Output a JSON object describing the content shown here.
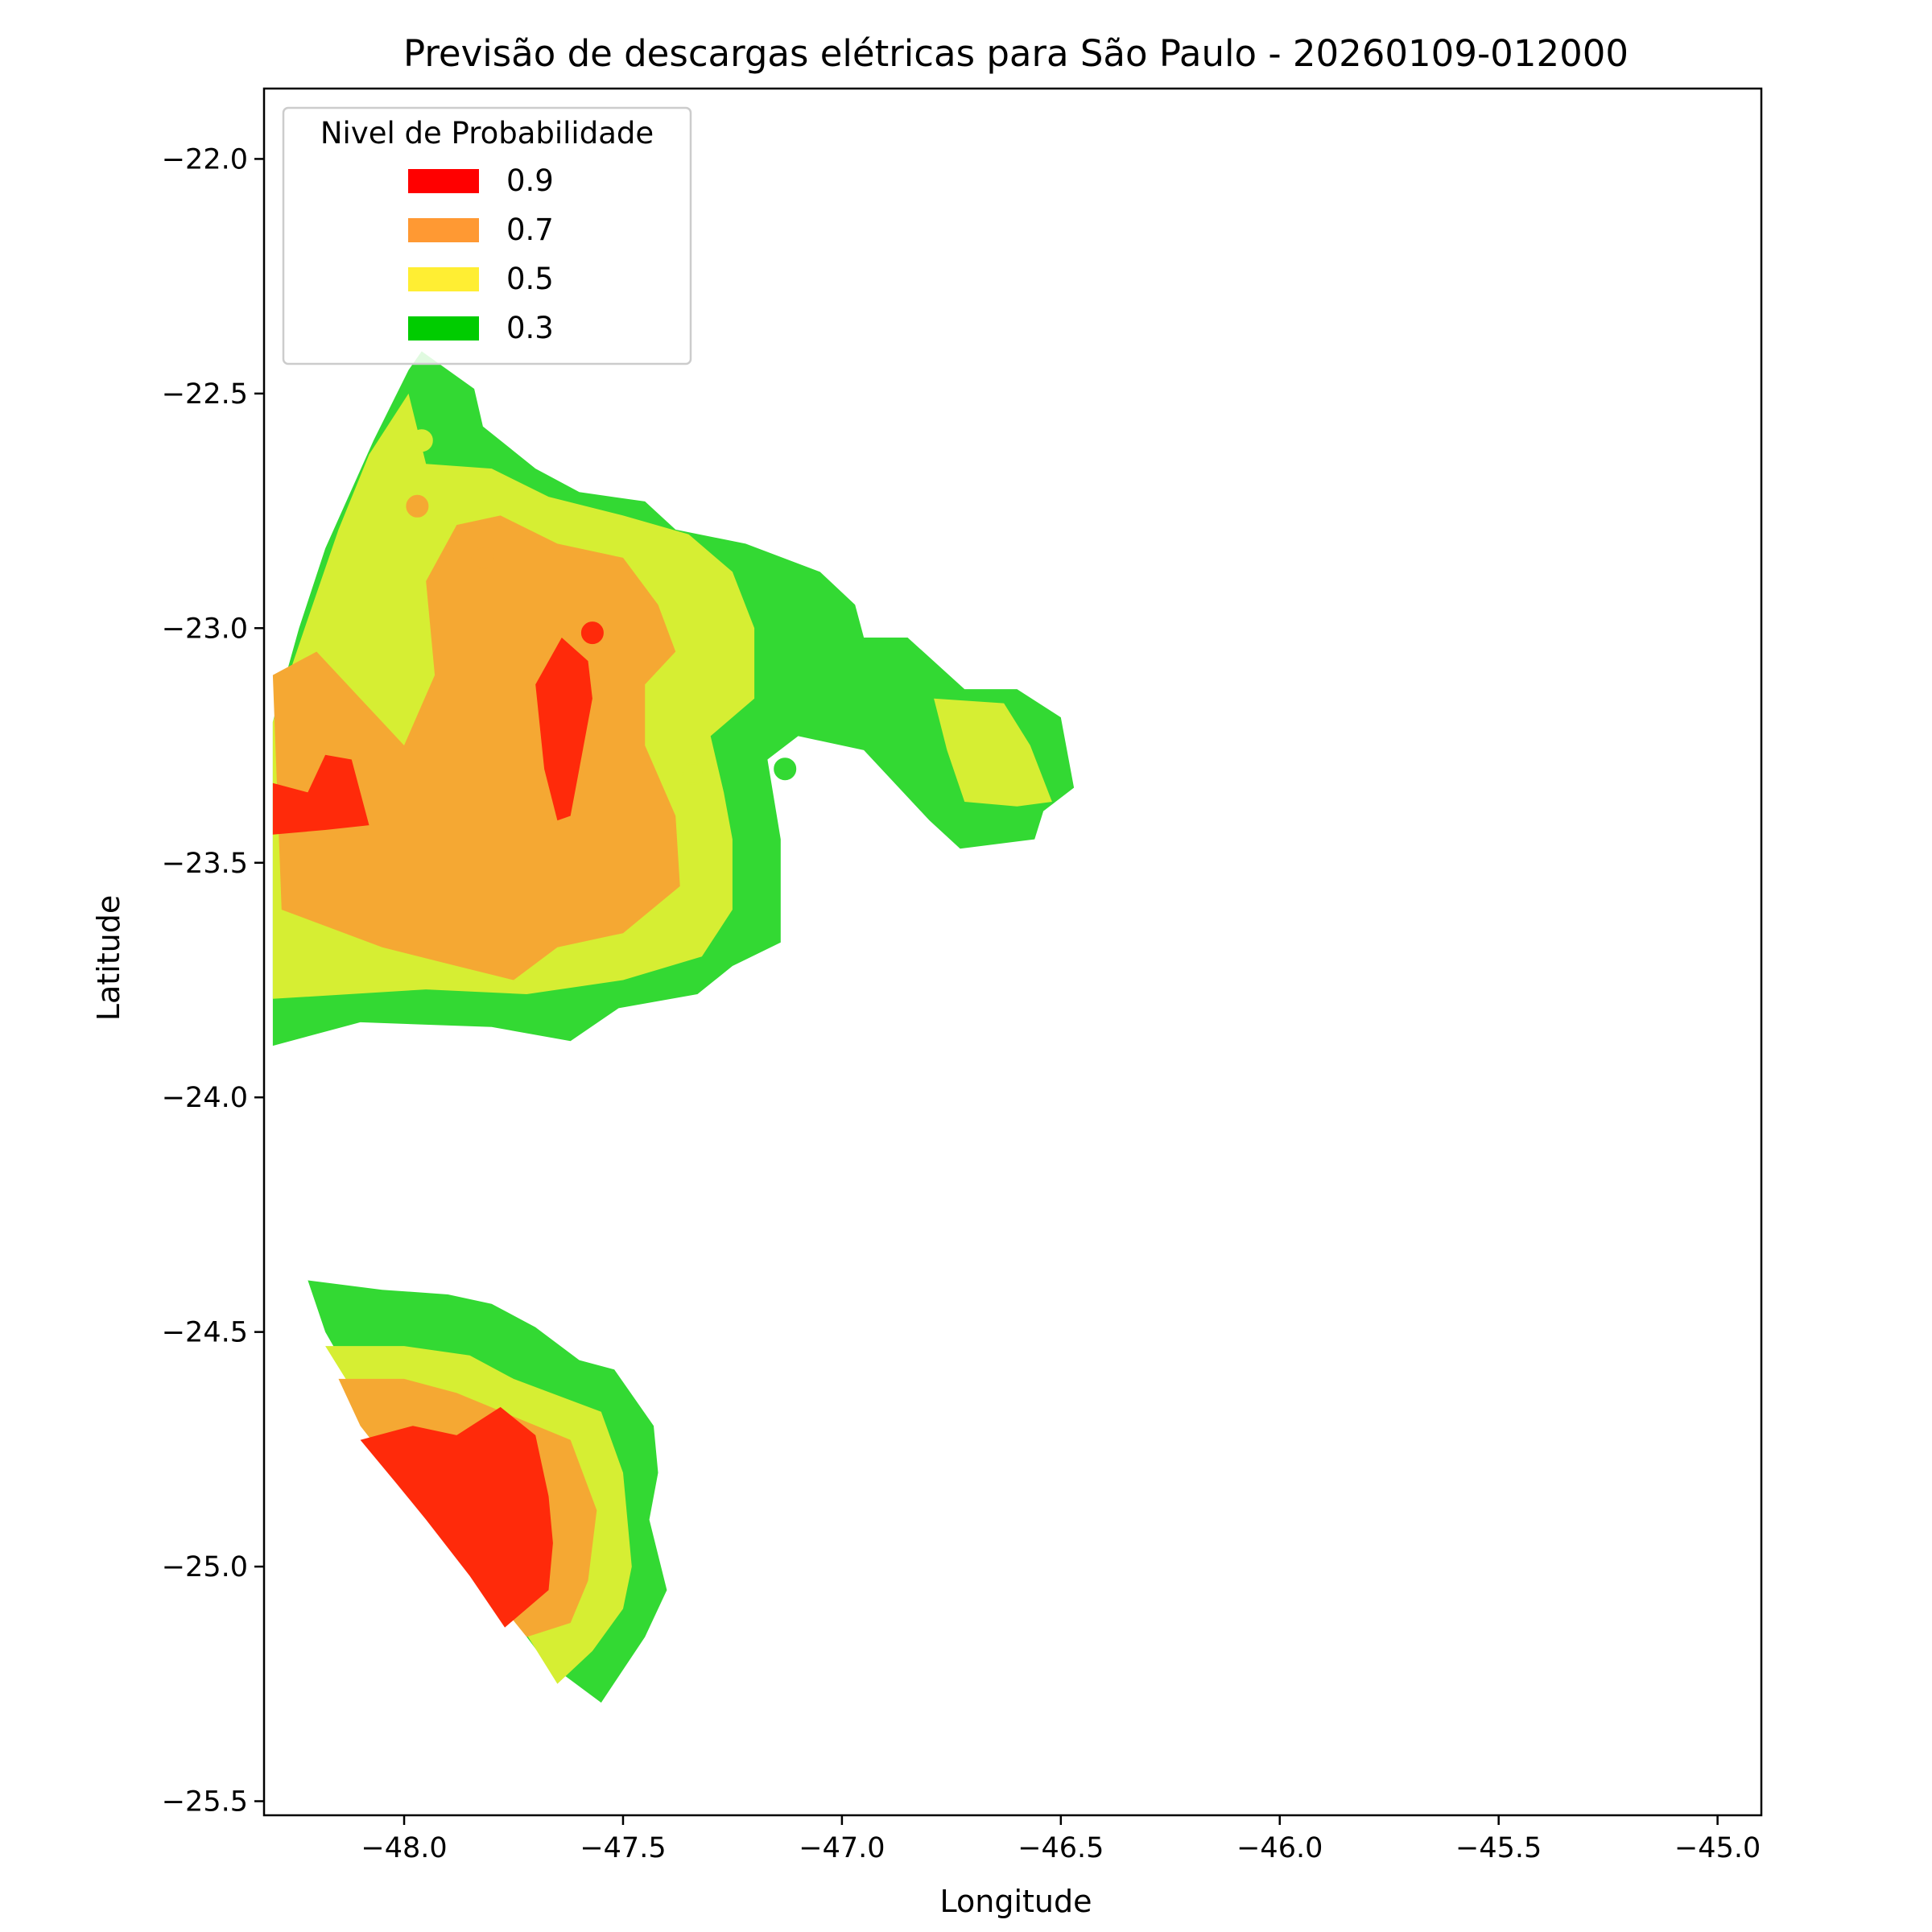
{
  "chart_data": {
    "type": "contour-map",
    "title": "Previsão de descargas elétricas para São Paulo - 20260109-012000",
    "xlabel": "Longitude",
    "ylabel": "Latitude",
    "xlim": [
      -48.32,
      -44.9
    ],
    "ylim": [
      -25.53,
      -21.85
    ],
    "x_ticks": [
      -48.0,
      -47.5,
      -47.0,
      -46.5,
      -46.0,
      -45.5,
      -45.0
    ],
    "x_tick_labels": [
      "−48.0",
      "−47.5",
      "−47.0",
      "−46.5",
      "−46.0",
      "−45.5",
      "−45.0"
    ],
    "y_ticks": [
      -22.0,
      -22.5,
      -23.0,
      -23.5,
      -24.0,
      -24.5,
      -25.0,
      -25.5
    ],
    "y_tick_labels": [
      "−22.0",
      "−22.5",
      "−23.0",
      "−23.5",
      "−24.0",
      "−24.5",
      "−25.0",
      "−25.5"
    ],
    "legend": {
      "title": "Nivel de Probabilidade",
      "placement": "upper-left",
      "entries": [
        {
          "label": "0.9",
          "color": "#ff0000"
        },
        {
          "label": "0.7",
          "color": "#ff9933"
        },
        {
          "label": "0.5",
          "color": "#ffee33"
        },
        {
          "label": "0.3",
          "color": "#00cc00"
        }
      ]
    },
    "fill_colors": {
      "0.3": "#33d933",
      "0.5": "#d6ee33",
      "0.7": "#f5a833",
      "0.9": "#ff2a0a"
    },
    "regions": [
      {
        "level": "0.3",
        "coords": [
          [
            -47.96,
            -22.41
          ],
          [
            -47.84,
            -22.49
          ],
          [
            -47.82,
            -22.57
          ],
          [
            -47.7,
            -22.66
          ],
          [
            -47.6,
            -22.71
          ],
          [
            -47.45,
            -22.73
          ],
          [
            -47.38,
            -22.79
          ],
          [
            -47.22,
            -22.82
          ],
          [
            -47.05,
            -22.88
          ],
          [
            -46.97,
            -22.95
          ],
          [
            -46.95,
            -23.02
          ],
          [
            -46.85,
            -23.02
          ],
          [
            -46.72,
            -23.13
          ],
          [
            -46.6,
            -23.13
          ],
          [
            -46.5,
            -23.19
          ],
          [
            -46.47,
            -23.34
          ],
          [
            -46.54,
            -23.39
          ],
          [
            -46.56,
            -23.45
          ],
          [
            -46.73,
            -23.47
          ],
          [
            -46.8,
            -23.41
          ],
          [
            -46.95,
            -23.26
          ],
          [
            -47.1,
            -23.23
          ],
          [
            -47.17,
            -23.28
          ],
          [
            -47.14,
            -23.45
          ],
          [
            -47.14,
            -23.67
          ],
          [
            -47.25,
            -23.72
          ],
          [
            -47.33,
            -23.78
          ],
          [
            -47.51,
            -23.81
          ],
          [
            -47.62,
            -23.88
          ],
          [
            -47.8,
            -23.85
          ],
          [
            -48.1,
            -23.84
          ],
          [
            -48.3,
            -23.89
          ],
          [
            -48.3,
            -23.2
          ],
          [
            -48.24,
            -23.0
          ],
          [
            -48.18,
            -22.83
          ],
          [
            -48.07,
            -22.6
          ],
          [
            -47.99,
            -22.45
          ]
        ]
      },
      {
        "level": "0.5",
        "coords": [
          [
            -47.99,
            -22.5
          ],
          [
            -47.95,
            -22.65
          ],
          [
            -47.8,
            -22.66
          ],
          [
            -47.67,
            -22.72
          ],
          [
            -47.5,
            -22.76
          ],
          [
            -47.35,
            -22.8
          ],
          [
            -47.25,
            -22.88
          ],
          [
            -47.2,
            -23.0
          ],
          [
            -47.2,
            -23.15
          ],
          [
            -47.3,
            -23.23
          ],
          [
            -47.27,
            -23.35
          ],
          [
            -47.25,
            -23.45
          ],
          [
            -47.25,
            -23.6
          ],
          [
            -47.32,
            -23.7
          ],
          [
            -47.5,
            -23.75
          ],
          [
            -47.72,
            -23.78
          ],
          [
            -47.95,
            -23.77
          ],
          [
            -48.3,
            -23.79
          ],
          [
            -48.3,
            -23.2
          ],
          [
            -48.22,
            -22.98
          ],
          [
            -48.15,
            -22.79
          ],
          [
            -48.08,
            -22.63
          ]
        ]
      },
      {
        "level": "0.5",
        "coords": [
          [
            -46.79,
            -23.15
          ],
          [
            -46.63,
            -23.16
          ],
          [
            -46.57,
            -23.25
          ],
          [
            -46.52,
            -23.37
          ],
          [
            -46.6,
            -23.38
          ],
          [
            -46.72,
            -23.37
          ],
          [
            -46.76,
            -23.26
          ]
        ]
      },
      {
        "level": "0.7",
        "coords": [
          [
            -47.95,
            -22.9
          ],
          [
            -47.88,
            -22.78
          ],
          [
            -47.78,
            -22.76
          ],
          [
            -47.65,
            -22.82
          ],
          [
            -47.5,
            -22.85
          ],
          [
            -47.42,
            -22.95
          ],
          [
            -47.38,
            -23.05
          ],
          [
            -47.45,
            -23.12
          ],
          [
            -47.45,
            -23.25
          ],
          [
            -47.38,
            -23.4
          ],
          [
            -47.37,
            -23.55
          ],
          [
            -47.5,
            -23.65
          ],
          [
            -47.65,
            -23.68
          ],
          [
            -47.75,
            -23.75
          ],
          [
            -47.88,
            -23.72
          ],
          [
            -48.05,
            -23.68
          ],
          [
            -48.28,
            -23.6
          ],
          [
            -48.3,
            -23.1
          ],
          [
            -48.2,
            -23.05
          ],
          [
            -48.1,
            -23.15
          ],
          [
            -48.0,
            -23.25
          ],
          [
            -47.93,
            -23.1
          ]
        ]
      },
      {
        "level": "0.9",
        "coords": [
          [
            -47.64,
            -23.02
          ],
          [
            -47.58,
            -23.07
          ],
          [
            -47.57,
            -23.15
          ],
          [
            -47.6,
            -23.3
          ],
          [
            -47.62,
            -23.4
          ],
          [
            -47.65,
            -23.41
          ],
          [
            -47.68,
            -23.3
          ],
          [
            -47.7,
            -23.12
          ]
        ]
      },
      {
        "level": "0.9",
        "coords": [
          [
            -48.3,
            -23.33
          ],
          [
            -48.22,
            -23.35
          ],
          [
            -48.18,
            -23.27
          ],
          [
            -48.12,
            -23.28
          ],
          [
            -48.1,
            -23.35
          ],
          [
            -48.08,
            -23.42
          ],
          [
            -48.18,
            -23.43
          ],
          [
            -48.3,
            -23.44
          ]
        ]
      },
      {
        "level": "0.3",
        "coords": [
          [
            -48.22,
            -24.39
          ],
          [
            -48.05,
            -24.41
          ],
          [
            -47.9,
            -24.42
          ],
          [
            -47.8,
            -24.44
          ],
          [
            -47.7,
            -24.49
          ],
          [
            -47.6,
            -24.56
          ],
          [
            -47.52,
            -24.58
          ],
          [
            -47.43,
            -24.7
          ],
          [
            -47.42,
            -24.8
          ],
          [
            -47.44,
            -24.9
          ],
          [
            -47.4,
            -25.05
          ],
          [
            -47.45,
            -25.15
          ],
          [
            -47.55,
            -25.29
          ],
          [
            -47.68,
            -25.2
          ],
          [
            -47.8,
            -25.05
          ],
          [
            -47.95,
            -24.85
          ],
          [
            -48.1,
            -24.63
          ],
          [
            -48.18,
            -24.5
          ]
        ]
      },
      {
        "level": "0.5",
        "coords": [
          [
            -48.18,
            -24.53
          ],
          [
            -48.0,
            -24.53
          ],
          [
            -47.85,
            -24.55
          ],
          [
            -47.75,
            -24.6
          ],
          [
            -47.55,
            -24.67
          ],
          [
            -47.5,
            -24.8
          ],
          [
            -47.48,
            -25.0
          ],
          [
            -47.5,
            -25.09
          ],
          [
            -47.57,
            -25.18
          ],
          [
            -47.65,
            -25.25
          ],
          [
            -47.75,
            -25.1
          ],
          [
            -47.85,
            -24.95
          ],
          [
            -47.98,
            -24.8
          ],
          [
            -48.1,
            -24.65
          ]
        ]
      },
      {
        "level": "0.7",
        "coords": [
          [
            -48.15,
            -24.6
          ],
          [
            -48.0,
            -24.6
          ],
          [
            -47.88,
            -24.63
          ],
          [
            -47.75,
            -24.68
          ],
          [
            -47.62,
            -24.73
          ],
          [
            -47.56,
            -24.88
          ],
          [
            -47.58,
            -25.03
          ],
          [
            -47.62,
            -25.12
          ],
          [
            -47.72,
            -25.15
          ],
          [
            -47.85,
            -25.0
          ],
          [
            -48.0,
            -24.82
          ],
          [
            -48.1,
            -24.7
          ]
        ]
      },
      {
        "level": "0.9",
        "coords": [
          [
            -48.1,
            -24.73
          ],
          [
            -47.98,
            -24.7
          ],
          [
            -47.88,
            -24.72
          ],
          [
            -47.78,
            -24.66
          ],
          [
            -47.7,
            -24.72
          ],
          [
            -47.67,
            -24.85
          ],
          [
            -47.66,
            -24.95
          ],
          [
            -47.67,
            -25.05
          ],
          [
            -47.77,
            -25.13
          ],
          [
            -47.85,
            -25.02
          ],
          [
            -47.95,
            -24.9
          ],
          [
            -48.02,
            -24.82
          ]
        ]
      }
    ],
    "points": [
      {
        "lon": -47.96,
        "lat": -22.6,
        "level": "0.5"
      },
      {
        "lon": -47.97,
        "lat": -22.74,
        "level": "0.7"
      },
      {
        "lon": -47.82,
        "lat": -22.85,
        "level": "0.7"
      },
      {
        "lon": -47.57,
        "lat": -23.01,
        "level": "0.9"
      },
      {
        "lon": -47.34,
        "lat": -23.31,
        "level": "0.5"
      },
      {
        "lon": -47.13,
        "lat": -23.3,
        "level": "0.3"
      }
    ]
  }
}
